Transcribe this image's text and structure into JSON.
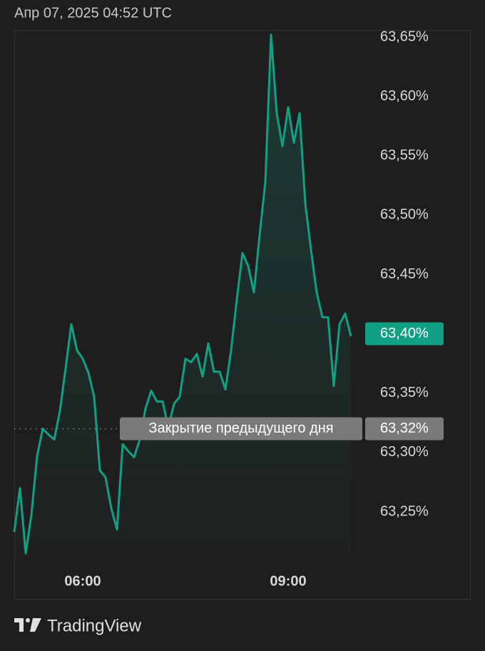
{
  "chart_data": {
    "type": "line",
    "title": "Апр 07, 2025 04:52 UTC",
    "x": [
      300,
      305,
      310,
      315,
      320,
      325,
      330,
      335,
      340,
      345,
      350,
      355,
      360,
      365,
      370,
      375,
      380,
      385,
      390,
      395,
      400,
      405,
      410,
      415,
      420,
      425,
      430,
      435,
      440,
      445,
      450,
      455,
      460,
      465,
      470,
      475,
      480,
      485,
      490,
      495,
      500,
      505,
      510,
      515,
      520,
      525,
      530,
      535,
      540,
      545,
      550,
      555,
      560,
      565,
      570,
      575,
      580,
      585,
      590,
      595
    ],
    "series": [
      {
        "name": null,
        "color": "#12a085",
        "values": [
          63.233,
          63.27,
          63.215,
          63.247,
          63.297,
          63.32,
          63.315,
          63.311,
          63.335,
          63.371,
          63.408,
          63.386,
          63.379,
          63.367,
          63.347,
          63.285,
          63.279,
          63.253,
          63.235,
          63.307,
          63.301,
          63.296,
          63.311,
          63.337,
          63.352,
          63.343,
          63.343,
          63.321,
          63.341,
          63.347,
          63.379,
          63.376,
          63.383,
          63.364,
          63.392,
          63.368,
          63.368,
          63.353,
          63.386,
          63.429,
          63.468,
          63.457,
          63.435,
          63.483,
          63.528,
          63.652,
          63.586,
          63.558,
          63.591,
          63.561,
          63.586,
          63.51,
          63.471,
          63.435,
          63.414,
          63.414,
          63.356,
          63.408,
          63.417,
          63.398
        ]
      }
    ],
    "xlim": [
      300,
      700
    ],
    "xticks": [
      {
        "value": 360,
        "label": "06:00"
      },
      {
        "value": 540,
        "label": "09:00"
      }
    ],
    "ylim": [
      63.176,
      63.656
    ],
    "yticks": [
      {
        "value": 63.25,
        "label": "63,25%"
      },
      {
        "value": 63.3,
        "label": "63,30%"
      },
      {
        "value": 63.35,
        "label": "63,35%"
      },
      {
        "value": 63.4,
        "label": "63,40%"
      },
      {
        "value": 63.45,
        "label": "63,45%"
      },
      {
        "value": 63.5,
        "label": "63,50%"
      },
      {
        "value": 63.55,
        "label": "63,55%"
      },
      {
        "value": 63.6,
        "label": "63,60%"
      },
      {
        "value": 63.65,
        "label": "63,65%"
      }
    ],
    "current_price": {
      "value": 63.4,
      "label": "63,40%",
      "color": "#12a085"
    },
    "previous_close": {
      "value": 63.32,
      "label": "63,32%",
      "annotation": "Закрытие предыдущего дня",
      "color": "#7a7a7a"
    },
    "branding": "TradingView"
  }
}
